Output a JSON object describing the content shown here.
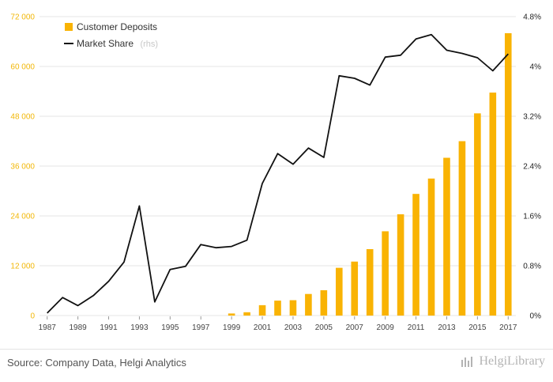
{
  "chart_data": {
    "type": "bar+line",
    "categories": [
      "1987",
      "1988",
      "1989",
      "1990",
      "1991",
      "1992",
      "1993",
      "1994",
      "1995",
      "1996",
      "1997",
      "1998",
      "1999",
      "2000",
      "2001",
      "2002",
      "2003",
      "2004",
      "2005",
      "2006",
      "2007",
      "2008",
      "2009",
      "2010",
      "2011",
      "2012",
      "2013",
      "2014",
      "2015",
      "2016",
      "2017"
    ],
    "x_tick_labels": [
      "1987",
      "1989",
      "1991",
      "1993",
      "1995",
      "1997",
      "1999",
      "2001",
      "2003",
      "2005",
      "2007",
      "2009",
      "2011",
      "2013",
      "2015",
      "2017"
    ],
    "series": [
      {
        "name": "Customer Deposits",
        "type": "bar",
        "axis": "left",
        "values": [
          0,
          0,
          0,
          0,
          0,
          0,
          0,
          0,
          0,
          0,
          0,
          0,
          500,
          800,
          2500,
          3600,
          3700,
          5200,
          6100,
          11500,
          13000,
          16000,
          20300,
          24400,
          29300,
          33000,
          38000,
          42000,
          48700,
          53700,
          68000
        ]
      },
      {
        "name": "Market Share",
        "note": "(rhs)",
        "type": "line",
        "axis": "right",
        "values": [
          0.04,
          0.29,
          0.16,
          0.32,
          0.55,
          0.86,
          1.76,
          0.22,
          0.74,
          0.79,
          1.14,
          1.09,
          1.11,
          1.21,
          2.12,
          2.6,
          2.43,
          2.69,
          2.54,
          3.85,
          3.81,
          3.7,
          4.15,
          4.18,
          4.44,
          4.51,
          4.26,
          4.21,
          4.14,
          3.93,
          4.2
        ]
      }
    ],
    "y_left": {
      "ticks": [
        "0",
        "12 000",
        "24 000",
        "36 000",
        "48 000",
        "60 000",
        "72 000"
      ],
      "min": 0,
      "max": 72000
    },
    "y_right": {
      "ticks": [
        "0%",
        "0.8%",
        "1.6%",
        "2.4%",
        "3.2%",
        "4%",
        "4.8%"
      ],
      "min": 0,
      "max": 4.8
    },
    "grid": true,
    "legend_position": "top-left",
    "colors": {
      "bars": "#f9b303",
      "line": "#111111",
      "left_axis_text": "#f2b707",
      "grid": "#e6e6e6"
    }
  },
  "footer": {
    "source": "Source: Company Data, Helgi Analytics",
    "logo_text": "HelgiLibrary"
  }
}
